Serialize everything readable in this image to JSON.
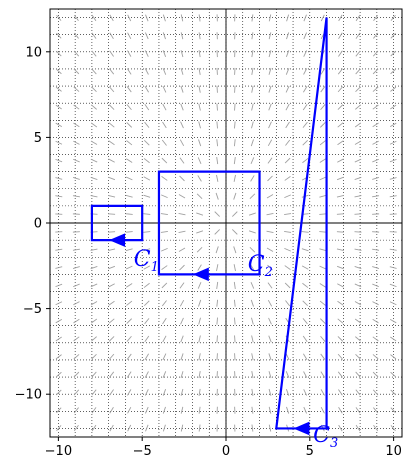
{
  "chart_data": {
    "type": "vector-field-with-contours",
    "xlim": [
      -10.5,
      10.5
    ],
    "ylim": [
      -12.5,
      12.5
    ],
    "x_ticks": [
      -10,
      -5,
      0,
      5,
      10
    ],
    "y_ticks": [
      -10,
      -5,
      0,
      5,
      10
    ],
    "x_tick_labels": [
      "−10",
      "−5",
      "0",
      "5",
      "10"
    ],
    "y_tick_labels": [
      "−10",
      "−5",
      "0",
      "5",
      "10"
    ],
    "minor_grid": true,
    "minor_step": 1,
    "axes_through_origin": true,
    "field_color": "#a0a0a0",
    "curve_color": "#0000ff",
    "curves": [
      {
        "name": "C",
        "subscript": "1",
        "type": "rectangle",
        "x_range": [
          -8,
          -5
        ],
        "y_range": [
          -1,
          1
        ],
        "arrow_at": [
          -6.5,
          -1
        ],
        "arrow_dir": "left"
      },
      {
        "name": "C",
        "subscript": "2",
        "type": "rectangle",
        "x_range": [
          -4,
          2
        ],
        "y_range": [
          -3,
          3
        ],
        "arrow_at": [
          -1.5,
          -3
        ],
        "arrow_dir": "left"
      },
      {
        "name": "C",
        "subscript": "3",
        "type": "triangle",
        "points": [
          [
            3,
            -12
          ],
          [
            6,
            -12
          ],
          [
            6,
            12
          ]
        ],
        "arrow_at": [
          4.5,
          -12
        ],
        "arrow_dir": "left"
      }
    ]
  }
}
